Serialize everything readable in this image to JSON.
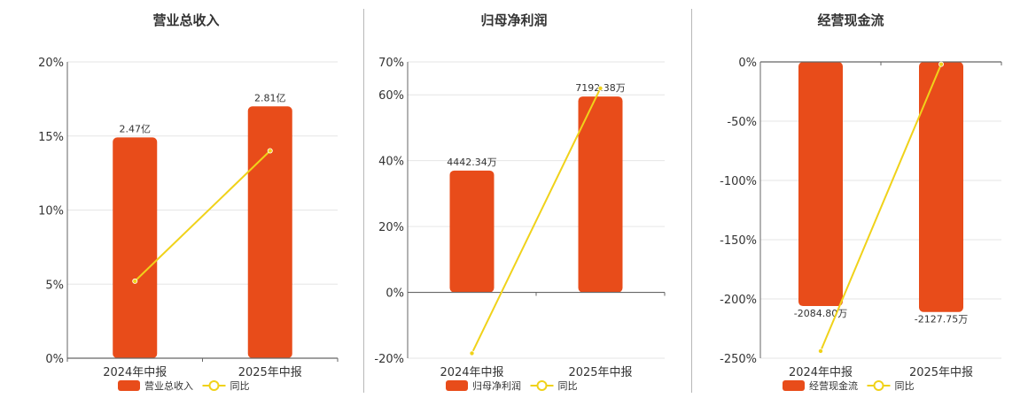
{
  "colors": {
    "bar": "#e84c1a",
    "line": "#f0d21a",
    "grid": "#e6e6e6",
    "axis": "#666666"
  },
  "legend": {
    "line_label": "同比"
  },
  "chart_data": [
    {
      "type": "bar",
      "title": "营业总收入",
      "categories": [
        "2024年中报",
        "2025年中报"
      ],
      "ylim": [
        0,
        20
      ],
      "yticks": [
        0,
        5,
        10,
        15,
        20
      ],
      "ytick_labels": [
        "0%",
        "5%",
        "10%",
        "15%",
        "20%"
      ],
      "series": [
        {
          "name": "营业总收入",
          "kind": "bar",
          "values": [
            14.9,
            17.0
          ],
          "labels": [
            "2.47亿",
            "2.81亿"
          ]
        },
        {
          "name": "同比",
          "kind": "line",
          "values": [
            5.2,
            14.0
          ]
        }
      ],
      "grid": true,
      "legend_position": "bottom"
    },
    {
      "type": "bar",
      "title": "归母净利润",
      "categories": [
        "2024年中报",
        "2025年中报"
      ],
      "ylim": [
        -20,
        70
      ],
      "yticks": [
        -20,
        0,
        20,
        40,
        60,
        70
      ],
      "ytick_labels": [
        "-20%",
        "0%",
        "20%",
        "40%",
        "60%",
        "70%"
      ],
      "series": [
        {
          "name": "归母净利润",
          "kind": "bar",
          "values": [
            37.0,
            59.5
          ],
          "labels": [
            "4442.34万",
            "7192.38万"
          ]
        },
        {
          "name": "同比",
          "kind": "line",
          "values": [
            -18.5,
            62.0
          ]
        }
      ],
      "grid": true,
      "legend_position": "bottom"
    },
    {
      "type": "bar",
      "title": "经营现金流",
      "categories": [
        "2024年中报",
        "2025年中报"
      ],
      "ylim": [
        -250,
        0
      ],
      "yticks": [
        -250,
        -200,
        -150,
        -100,
        -50,
        0
      ],
      "ytick_labels": [
        "-250%",
        "-200%",
        "-150%",
        "-100%",
        "-50%",
        "0%"
      ],
      "series": [
        {
          "name": "经营现金流",
          "kind": "bar",
          "values": [
            -206,
            -211
          ],
          "labels": [
            "-2084.80万",
            "-2127.75万"
          ]
        },
        {
          "name": "同比",
          "kind": "line",
          "values": [
            -244,
            -2
          ]
        }
      ],
      "grid": true,
      "legend_position": "bottom"
    }
  ]
}
